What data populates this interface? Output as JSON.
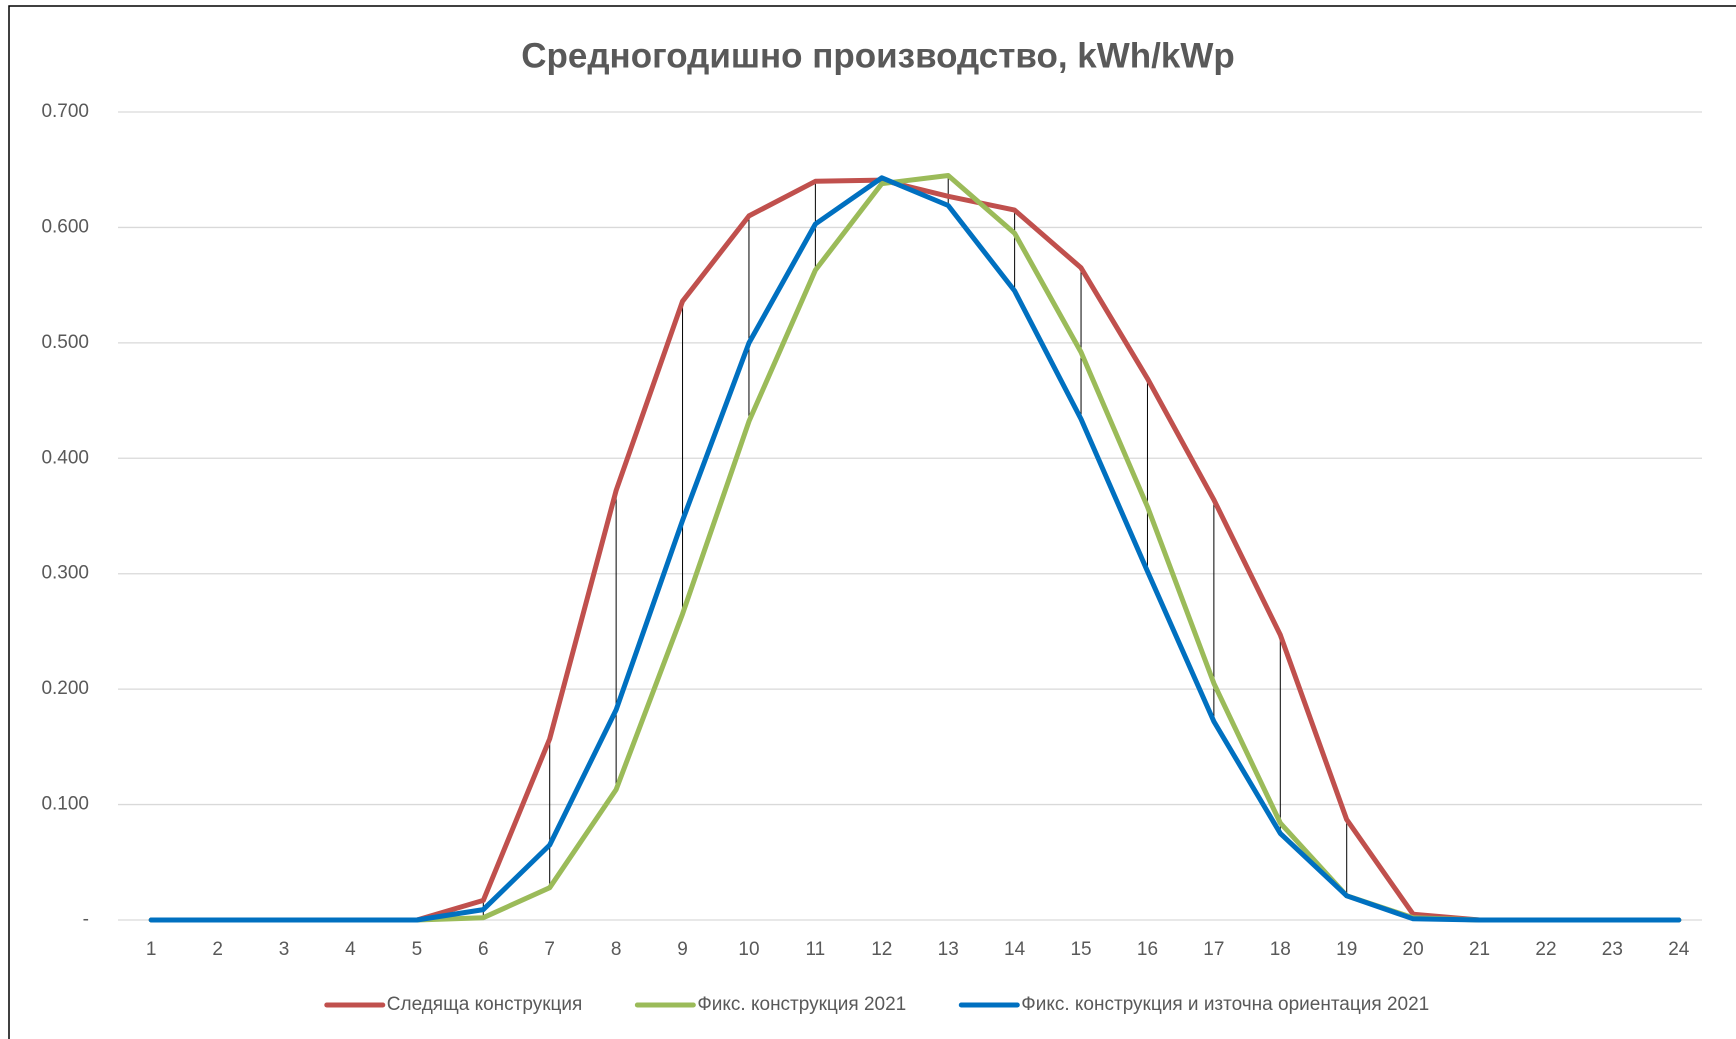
{
  "chart_data": {
    "type": "line",
    "title": "Средногодишно производство, kWh/kWp",
    "categories": [
      "1",
      "2",
      "3",
      "4",
      "5",
      "6",
      "7",
      "8",
      "9",
      "10",
      "11",
      "12",
      "13",
      "14",
      "15",
      "16",
      "17",
      "18",
      "19",
      "20",
      "21",
      "22",
      "23",
      "24"
    ],
    "series": [
      {
        "name": "Следяща конструкция",
        "color": "#c0504d",
        "values": [
          0,
          0,
          0,
          0,
          0,
          0.017,
          0.157,
          0.372,
          0.536,
          0.61,
          0.64,
          0.641,
          0.627,
          0.615,
          0.565,
          0.469,
          0.364,
          0.247,
          0.087,
          0.005,
          0,
          0,
          0,
          0
        ]
      },
      {
        "name": "Фикс. конструкция 2021",
        "color": "#9bbb59",
        "values": [
          0,
          0,
          0,
          0,
          0,
          0.002,
          0.028,
          0.113,
          0.265,
          0.432,
          0.563,
          0.638,
          0.645,
          0.595,
          0.492,
          0.358,
          0.205,
          0.084,
          0.021,
          0.002,
          0,
          0,
          0,
          0
        ]
      },
      {
        "name": "Фикс. конструкция и източна ориентация 2021",
        "color": "#0070c0",
        "values": [
          0,
          0,
          0,
          0,
          0,
          0.009,
          0.065,
          0.182,
          0.346,
          0.5,
          0.603,
          0.643,
          0.619,
          0.545,
          0.434,
          0.302,
          0.172,
          0.075,
          0.021,
          0.001,
          0,
          0,
          0,
          0
        ]
      }
    ],
    "ylim": [
      0,
      0.7
    ],
    "yticks": [
      {
        "value": 0,
        "label": "-"
      },
      {
        "value": 0.1,
        "label": "0.100"
      },
      {
        "value": 0.2,
        "label": "0.200"
      },
      {
        "value": 0.3,
        "label": "0.300"
      },
      {
        "value": 0.4,
        "label": "0.400"
      },
      {
        "value": 0.5,
        "label": "0.500"
      },
      {
        "value": 0.6,
        "label": "0.600"
      },
      {
        "value": 0.7,
        "label": "0.700"
      }
    ],
    "grid": true,
    "high_low_lines": true,
    "legend": "bottom"
  }
}
